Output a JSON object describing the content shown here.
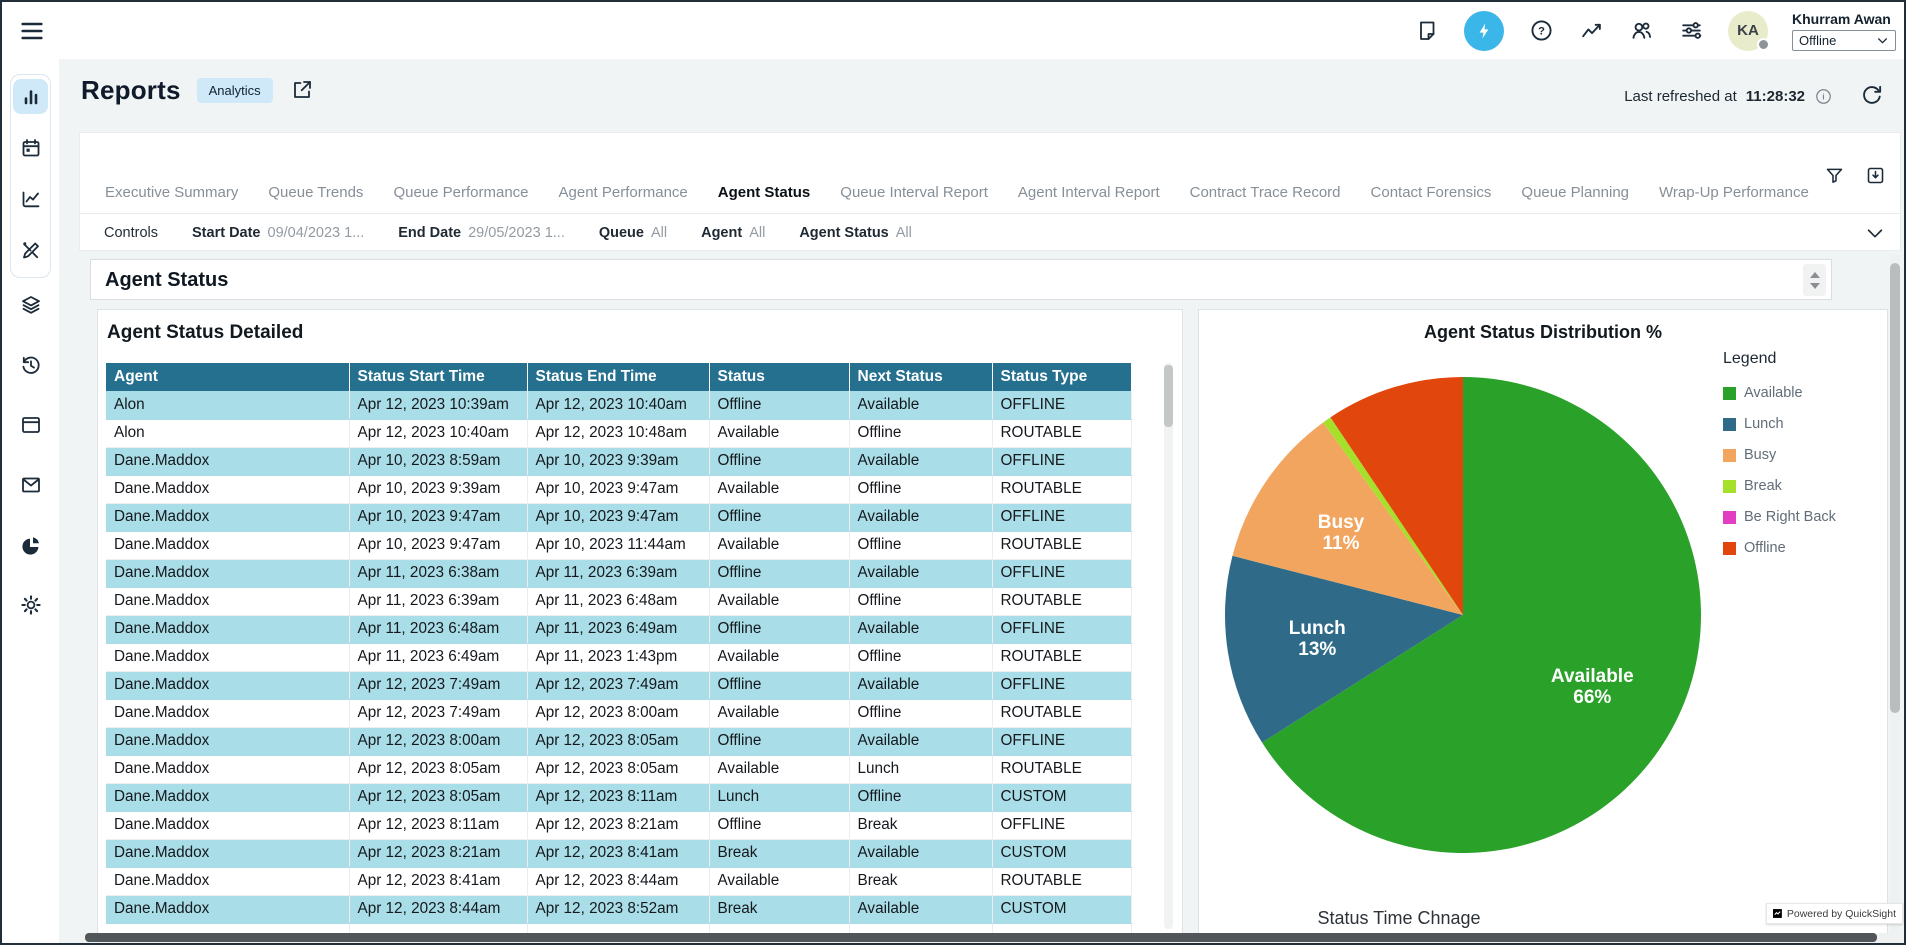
{
  "topbar": {
    "icons": [
      "notes-icon",
      "quick-setup-flash-icon",
      "help-icon",
      "trends-icon",
      "users-icon",
      "preferences-icon"
    ],
    "user": {
      "initials": "KA",
      "name": "Khurram Awan",
      "status": "Offline"
    }
  },
  "sidebar": {
    "group_icons": [
      "bar-chart",
      "calendar",
      "line-chart",
      "design"
    ],
    "other_icons": [
      "layers",
      "history",
      "window",
      "mail",
      "pie-chart",
      "settings"
    ],
    "active_icon": "bar-chart"
  },
  "header": {
    "title": "Reports",
    "badge": "Analytics",
    "refreshed_label": "Last refreshed at",
    "refreshed_time": "11:28:32"
  },
  "tabs": {
    "items": [
      {
        "label": "Executive Summary",
        "active": false
      },
      {
        "label": "Queue Trends",
        "active": false
      },
      {
        "label": "Queue Performance",
        "active": false
      },
      {
        "label": "Agent Performance",
        "active": false
      },
      {
        "label": "Agent Status",
        "active": true
      },
      {
        "label": "Queue Interval Report",
        "active": false
      },
      {
        "label": "Agent Interval Report",
        "active": false
      },
      {
        "label": "Contract Trace Record",
        "active": false
      },
      {
        "label": "Contact Forensics",
        "active": false
      },
      {
        "label": "Queue Planning",
        "active": false
      },
      {
        "label": "Wrap-Up Performance",
        "active": false
      }
    ]
  },
  "controls": {
    "label": "Controls",
    "filters": [
      {
        "label": "Start Date",
        "value": "09/04/2023 1..."
      },
      {
        "label": "End Date",
        "value": "29/05/2023 1..."
      },
      {
        "label": "Queue",
        "value": "All"
      },
      {
        "label": "Agent",
        "value": "All"
      },
      {
        "label": "Agent Status",
        "value": "All"
      }
    ]
  },
  "section_title": "Agent Status",
  "table_panel": {
    "title": "Agent Status Detailed",
    "columns": [
      "Agent",
      "Status Start Time",
      "Status End Time",
      "Status",
      "Next Status",
      "Status Type"
    ],
    "rows": [
      [
        "Alon",
        "Apr 12, 2023 10:39am",
        "Apr 12, 2023 10:40am",
        "Offline",
        "Available",
        "OFFLINE"
      ],
      [
        "Alon",
        "Apr 12, 2023 10:40am",
        "Apr 12, 2023 10:48am",
        "Available",
        "Offline",
        "ROUTABLE"
      ],
      [
        "Dane.Maddox",
        "Apr 10, 2023 8:59am",
        "Apr 10, 2023 9:39am",
        "Offline",
        "Available",
        "OFFLINE"
      ],
      [
        "Dane.Maddox",
        "Apr 10, 2023 9:39am",
        "Apr 10, 2023 9:47am",
        "Available",
        "Offline",
        "ROUTABLE"
      ],
      [
        "Dane.Maddox",
        "Apr 10, 2023 9:47am",
        "Apr 10, 2023 9:47am",
        "Offline",
        "Available",
        "OFFLINE"
      ],
      [
        "Dane.Maddox",
        "Apr 10, 2023 9:47am",
        "Apr 10, 2023 11:44am",
        "Available",
        "Offline",
        "ROUTABLE"
      ],
      [
        "Dane.Maddox",
        "Apr 11, 2023 6:38am",
        "Apr 11, 2023 6:39am",
        "Offline",
        "Available",
        "OFFLINE"
      ],
      [
        "Dane.Maddox",
        "Apr 11, 2023 6:39am",
        "Apr 11, 2023 6:48am",
        "Available",
        "Offline",
        "ROUTABLE"
      ],
      [
        "Dane.Maddox",
        "Apr 11, 2023 6:48am",
        "Apr 11, 2023 6:49am",
        "Offline",
        "Available",
        "OFFLINE"
      ],
      [
        "Dane.Maddox",
        "Apr 11, 2023 6:49am",
        "Apr 11, 2023 1:43pm",
        "Available",
        "Offline",
        "ROUTABLE"
      ],
      [
        "Dane.Maddox",
        "Apr 12, 2023 7:49am",
        "Apr 12, 2023 7:49am",
        "Offline",
        "Available",
        "OFFLINE"
      ],
      [
        "Dane.Maddox",
        "Apr 12, 2023 7:49am",
        "Apr 12, 2023 8:00am",
        "Available",
        "Offline",
        "ROUTABLE"
      ],
      [
        "Dane.Maddox",
        "Apr 12, 2023 8:00am",
        "Apr 12, 2023 8:05am",
        "Offline",
        "Available",
        "OFFLINE"
      ],
      [
        "Dane.Maddox",
        "Apr 12, 2023 8:05am",
        "Apr 12, 2023 8:05am",
        "Available",
        "Lunch",
        "ROUTABLE"
      ],
      [
        "Dane.Maddox",
        "Apr 12, 2023 8:05am",
        "Apr 12, 2023 8:11am",
        "Lunch",
        "Offline",
        "CUSTOM"
      ],
      [
        "Dane.Maddox",
        "Apr 12, 2023 8:11am",
        "Apr 12, 2023 8:21am",
        "Offline",
        "Break",
        "OFFLINE"
      ],
      [
        "Dane.Maddox",
        "Apr 12, 2023 8:21am",
        "Apr 12, 2023 8:41am",
        "Break",
        "Available",
        "CUSTOM"
      ],
      [
        "Dane.Maddox",
        "Apr 12, 2023 8:41am",
        "Apr 12, 2023 8:44am",
        "Available",
        "Break",
        "ROUTABLE"
      ],
      [
        "Dane.Maddox",
        "Apr 12, 2023 8:44am",
        "Apr 12, 2023 8:52am",
        "Break",
        "Available",
        "CUSTOM"
      ]
    ]
  },
  "chart_data": {
    "type": "pie",
    "title": "Agent Status Distribution %",
    "legend_title": "Legend",
    "legend_position": "right",
    "slices": [
      {
        "label": "Available",
        "pct": 66,
        "color": "#2aa22a",
        "show_label": true
      },
      {
        "label": "Lunch",
        "pct": 13,
        "color": "#2f6b88",
        "show_label": true
      },
      {
        "label": "Busy",
        "pct": 11,
        "color": "#f2a55e",
        "show_label": true
      },
      {
        "label": "Break",
        "pct": 0.6,
        "color": "#a6e02b",
        "show_label": false
      },
      {
        "label": "Be Right Back",
        "pct": 0,
        "color": "#e23ec2",
        "show_label": false
      },
      {
        "label": "Offline",
        "pct": 9.4,
        "color": "#e1470d",
        "show_label": false
      }
    ],
    "footer_title": "Status Time Chnage"
  },
  "powered_by": "Powered by QuickSight",
  "colors": {
    "accent_blue": "#3ab6e8",
    "table_header": "#26708f",
    "table_alt_row": "#a9dde7",
    "active_tile": "#cfe9f8"
  }
}
